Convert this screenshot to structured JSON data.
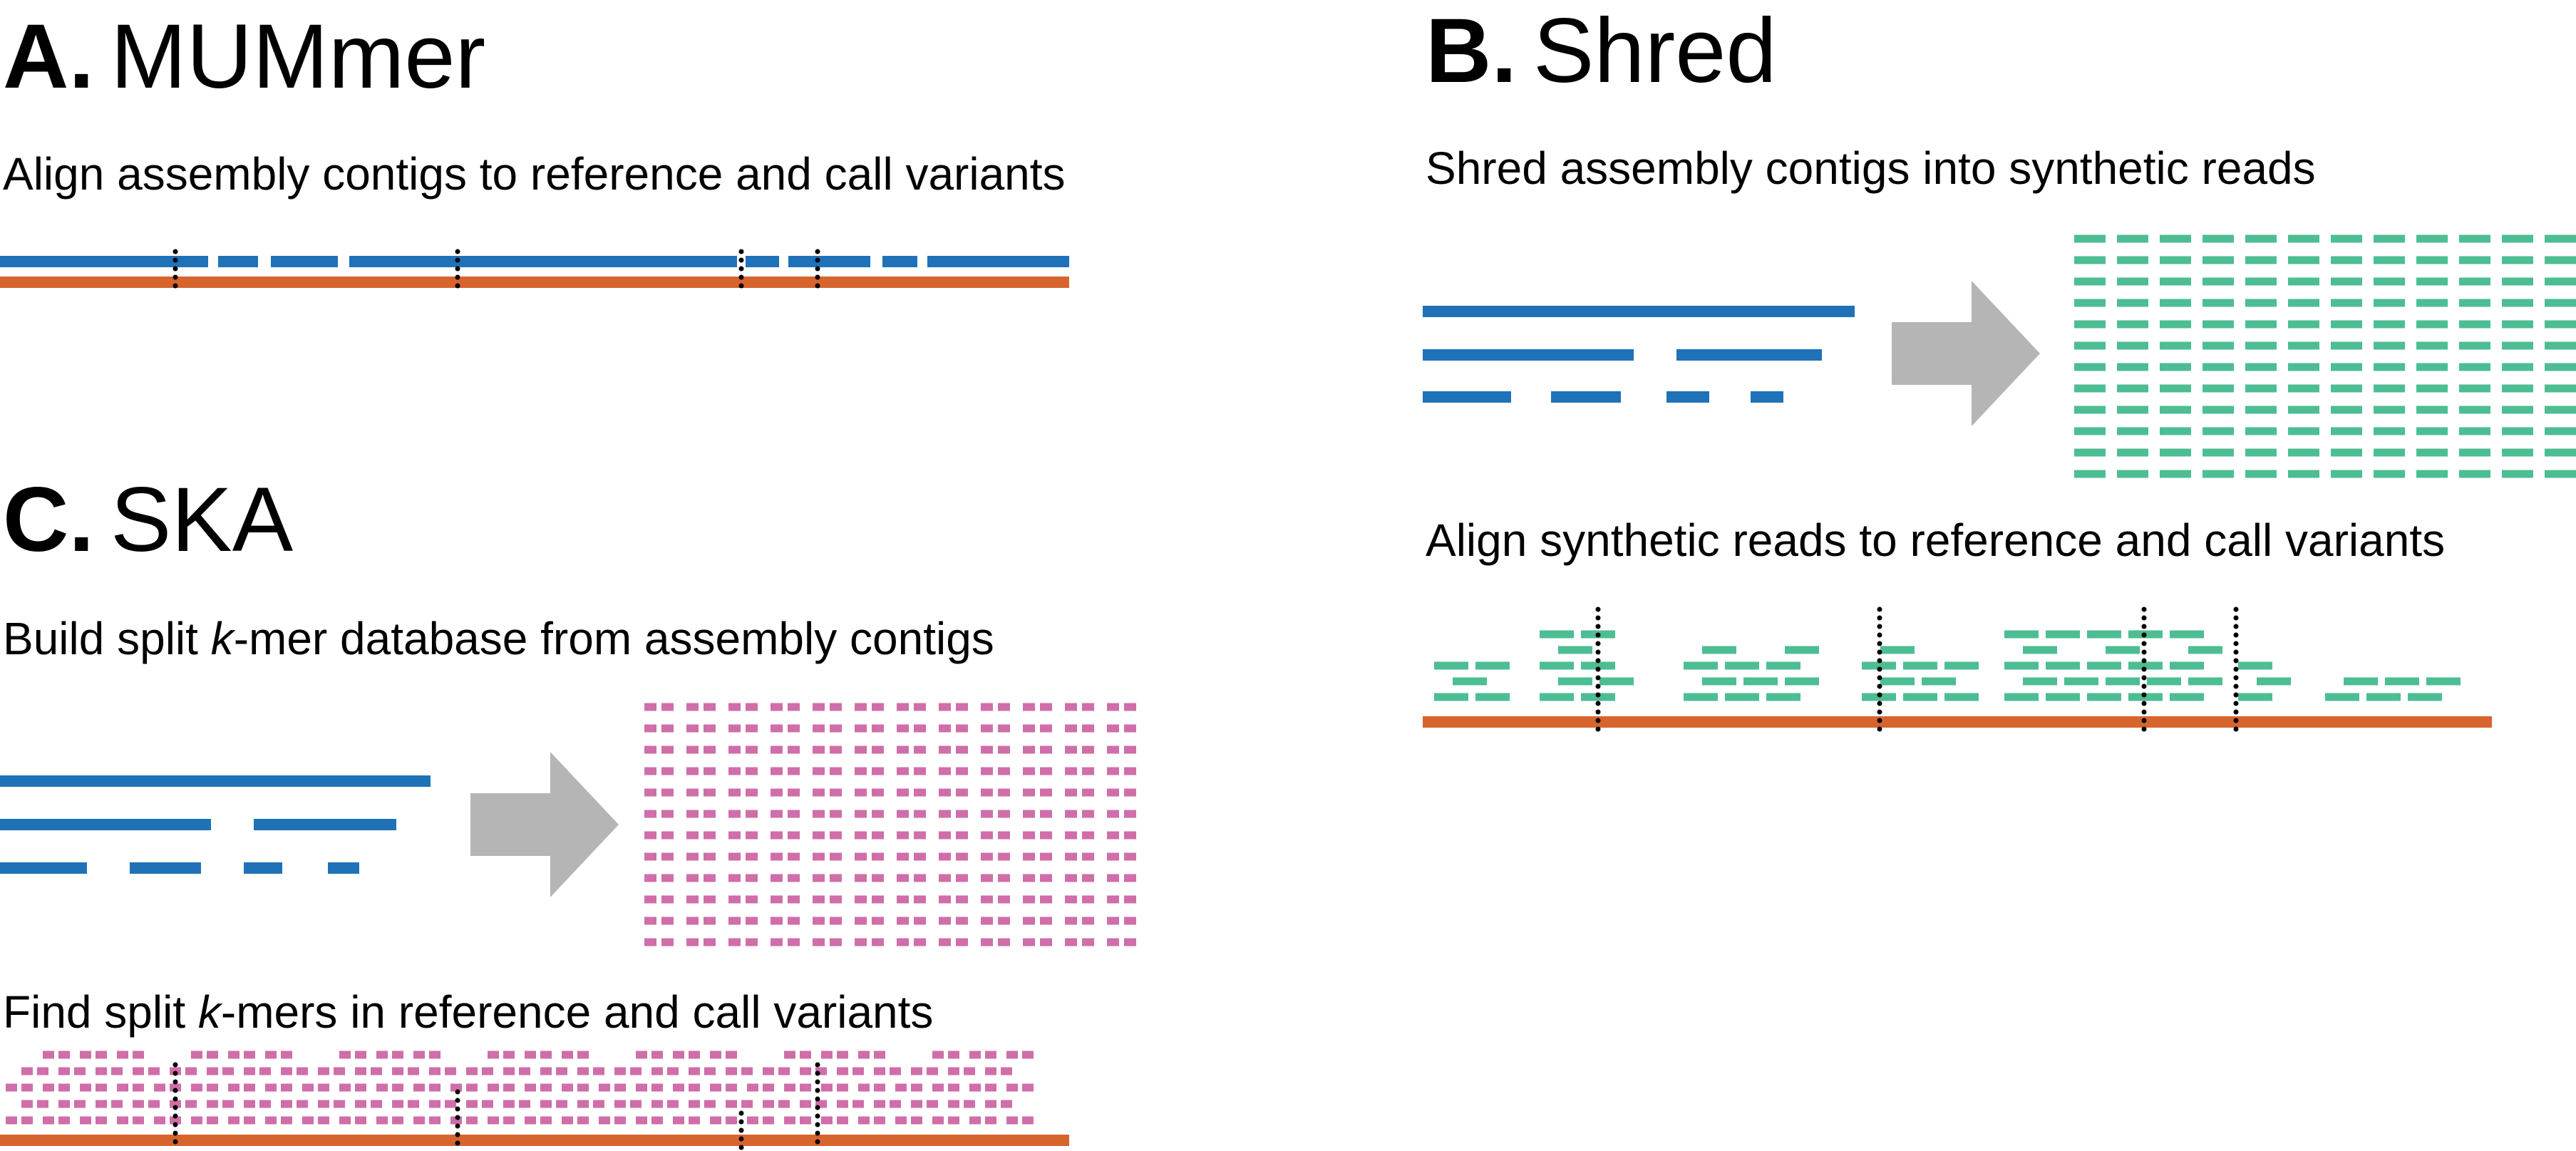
{
  "colors": {
    "contig": "#1f72b8",
    "reference": "#d8642d",
    "read": "#4dbd93",
    "kmer": "#cf6ea8",
    "arrow": "#b5b5b5",
    "variant": "#000000"
  },
  "panels": {
    "a": {
      "letter": "A.",
      "name": "MUMmer",
      "caption": "Align assembly contigs to reference and call variants"
    },
    "b": {
      "letter": "B.",
      "name": "Shred",
      "caption1": "Shred assembly contigs into synthetic reads",
      "caption2": "Align synthetic reads to reference and call variants"
    },
    "c": {
      "letter": "C.",
      "name": "SKA",
      "caption1_pre": "Build split ",
      "caption1_k": "k",
      "caption1_post": "-mer database from assembly contigs",
      "caption2_pre": "Find split ",
      "caption2_k": "k",
      "caption2_post": "-mers in reference and call variants"
    }
  }
}
